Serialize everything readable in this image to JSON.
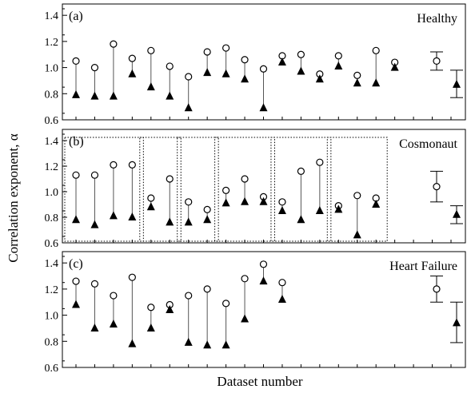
{
  "chart_data": {
    "type": "scatter",
    "xlabel": "Dataset number",
    "ylabel": "Correlation exponent, α",
    "ylim": [
      0.6,
      1.5
    ],
    "y_ticks": [
      "0.6",
      "0.8",
      "1.0",
      "1.2",
      "1.4"
    ],
    "marker_legend": {
      "open_circle": "upper value",
      "filled_triangle": "lower value"
    },
    "panels": [
      {
        "label": "(a)",
        "title": "Healthy",
        "pairs": [
          {
            "circle": 1.05,
            "triangle": 0.79
          },
          {
            "circle": 1.0,
            "triangle": 0.78
          },
          {
            "circle": 1.18,
            "triangle": 0.78
          },
          {
            "circle": 1.07,
            "triangle": 0.95
          },
          {
            "circle": 1.13,
            "triangle": 0.85
          },
          {
            "circle": 1.01,
            "triangle": 0.78
          },
          {
            "circle": 0.93,
            "triangle": 0.69
          },
          {
            "circle": 1.12,
            "triangle": 0.96
          },
          {
            "circle": 1.15,
            "triangle": 0.95
          },
          {
            "circle": 1.06,
            "triangle": 0.91
          },
          {
            "circle": 0.99,
            "triangle": 0.69
          },
          {
            "circle": 1.09,
            "triangle": 1.04
          },
          {
            "circle": 1.1,
            "triangle": 0.97
          },
          {
            "circle": 0.95,
            "triangle": 0.91
          },
          {
            "circle": 1.09,
            "triangle": 1.01
          },
          {
            "circle": 0.94,
            "triangle": 0.88
          },
          {
            "circle": 1.13,
            "triangle": 0.88
          },
          {
            "circle": 1.04,
            "triangle": 1.0
          }
        ],
        "summary": {
          "circle": {
            "mean": 1.05,
            "low": 0.98,
            "high": 1.12
          },
          "triangle": {
            "mean": 0.87,
            "low": 0.77,
            "high": 0.98
          }
        },
        "groups": []
      },
      {
        "label": "(b)",
        "title": "Cosmonaut",
        "pairs": [
          {
            "circle": 1.13,
            "triangle": 0.78
          },
          {
            "circle": 1.13,
            "triangle": 0.74
          },
          {
            "circle": 1.21,
            "triangle": 0.81
          },
          {
            "circle": 1.21,
            "triangle": 0.8
          },
          {
            "circle": 0.95,
            "triangle": 0.88
          },
          {
            "circle": 1.1,
            "triangle": 0.76
          },
          {
            "circle": 0.92,
            "triangle": 0.76
          },
          {
            "circle": 0.86,
            "triangle": 0.78
          },
          {
            "circle": 1.01,
            "triangle": 0.91
          },
          {
            "circle": 1.1,
            "triangle": 0.92
          },
          {
            "circle": 0.96,
            "triangle": 0.92
          },
          {
            "circle": 0.92,
            "triangle": 0.85
          },
          {
            "circle": 1.16,
            "triangle": 0.78
          },
          {
            "circle": 1.23,
            "triangle": 0.85
          },
          {
            "circle": 0.89,
            "triangle": 0.86
          },
          {
            "circle": 0.97,
            "triangle": 0.66
          },
          {
            "circle": 0.95,
            "triangle": 0.9
          }
        ],
        "summary": {
          "circle": {
            "mean": 1.04,
            "low": 0.92,
            "high": 1.16
          },
          "triangle": {
            "mean": 0.82,
            "low": 0.75,
            "high": 0.89
          }
        },
        "groups": [
          [
            0,
            3
          ],
          [
            4,
            5
          ],
          [
            6,
            7
          ],
          [
            8,
            10
          ],
          [
            11,
            13
          ],
          [
            14,
            16
          ]
        ]
      },
      {
        "label": "(c)",
        "title": "Heart Failure",
        "pairs": [
          {
            "circle": 1.26,
            "triangle": 1.08
          },
          {
            "circle": 1.24,
            "triangle": 0.9
          },
          {
            "circle": 1.15,
            "triangle": 0.93
          },
          {
            "circle": 1.29,
            "triangle": 0.78
          },
          {
            "circle": 1.06,
            "triangle": 0.9
          },
          {
            "circle": 1.08,
            "triangle": 1.04
          },
          {
            "circle": 1.15,
            "triangle": 0.79
          },
          {
            "circle": 1.2,
            "triangle": 0.77
          },
          {
            "circle": 1.09,
            "triangle": 0.77
          },
          {
            "circle": 1.28,
            "triangle": 0.97
          },
          {
            "circle": 1.39,
            "triangle": 1.26
          },
          {
            "circle": 1.25,
            "triangle": 1.12
          }
        ],
        "summary": {
          "circle": {
            "mean": 1.2,
            "low": 1.1,
            "high": 1.3
          },
          "triangle": {
            "mean": 0.94,
            "low": 0.79,
            "high": 1.1
          }
        },
        "groups": []
      }
    ],
    "colors": {
      "ink": "#000000",
      "stem": "#555555",
      "background": "#ffffff"
    }
  }
}
